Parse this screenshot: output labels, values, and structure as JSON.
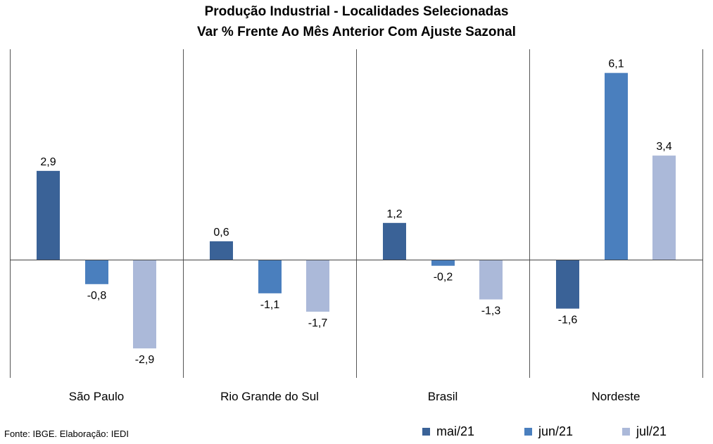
{
  "title_line1": "Produção Industrial - Localidades Selecionadas",
  "title_line2": "Var % Frente Ao Mês Anterior Com Ajuste Sazonal",
  "source": "Fonte: IBGE. Elaboração: IEDI",
  "chart_data": {
    "type": "bar",
    "categories": [
      "São Paulo",
      "Rio Grande do Sul",
      "Brasil",
      "Nordeste"
    ],
    "series": [
      {
        "name": "mai/21",
        "color": "#3a6297",
        "values": [
          2.9,
          0.6,
          1.2,
          -1.6
        ],
        "labels": [
          "2,9",
          "0,6",
          "1,2",
          "-1,6"
        ]
      },
      {
        "name": "jun/21",
        "color": "#4a7fbe",
        "values": [
          -0.8,
          -1.1,
          -0.2,
          6.1
        ],
        "labels": [
          "-0,8",
          "-1,1",
          "-0,2",
          "6,1"
        ]
      },
      {
        "name": "jul/21",
        "color": "#abb9d9",
        "values": [
          -2.9,
          -1.7,
          -1.3,
          3.4
        ],
        "labels": [
          "-2,9",
          "-1,7",
          "-1,3",
          "3,4"
        ]
      }
    ],
    "title": "Produção Industrial - Localidades Selecionadas",
    "subtitle": "Var % Frente Ao Mês Anterior Com Ajuste Sazonal",
    "xlabel": "",
    "ylabel": "",
    "y_axis_visible": false,
    "grid": false,
    "category_separators": true,
    "legend_position": "bottom-right",
    "data_label_decimal_separator": ","
  }
}
